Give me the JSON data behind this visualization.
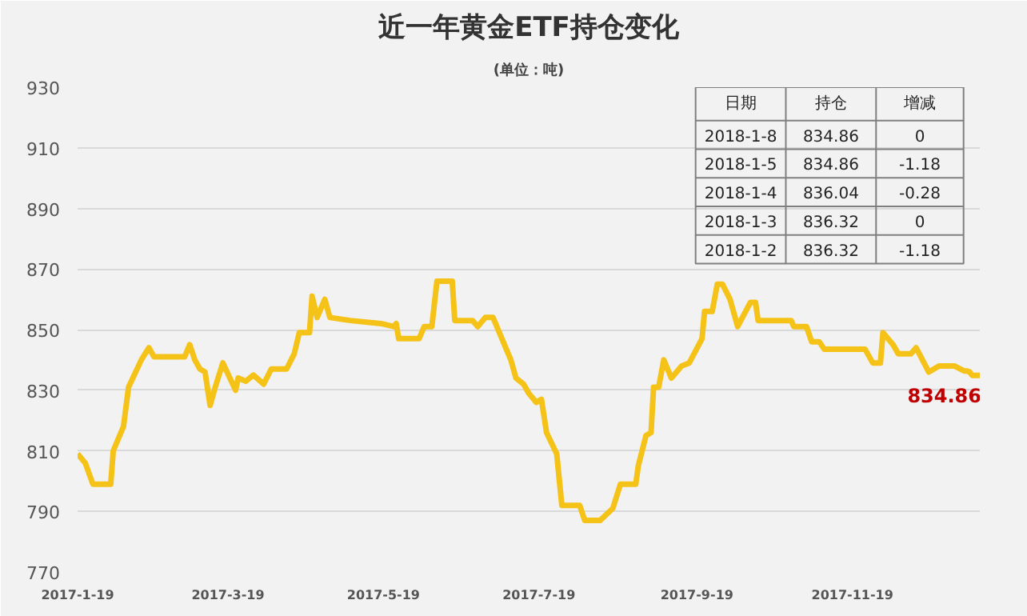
{
  "chart_data": {
    "type": "line",
    "title": "近一年黄金ETF持仓变化",
    "subtitle": "(单位：吨)",
    "x": [
      "2017-01-19",
      "2017-01-22",
      "2017-01-25",
      "2017-02-01",
      "2017-02-02",
      "2017-02-06",
      "2017-02-08",
      "2017-02-13",
      "2017-02-16",
      "2017-02-18",
      "2017-03-02",
      "2017-03-04",
      "2017-03-06",
      "2017-03-08",
      "2017-03-10",
      "2017-03-12",
      "2017-03-14",
      "2017-03-17",
      "2017-03-22",
      "2017-03-23",
      "2017-03-26",
      "2017-03-29",
      "2017-04-02",
      "2017-04-05",
      "2017-04-11",
      "2017-04-14",
      "2017-04-16",
      "2017-04-20",
      "2017-04-21",
      "2017-04-23",
      "2017-04-26",
      "2017-04-28",
      "2017-05-06",
      "2017-05-18",
      "2017-05-23",
      "2017-05-24",
      "2017-05-25",
      "2017-06-02",
      "2017-06-04",
      "2017-06-07",
      "2017-06-09",
      "2017-06-15",
      "2017-06-16",
      "2017-06-23",
      "2017-06-25",
      "2017-06-28",
      "2017-07-01",
      "2017-07-08",
      "2017-07-10",
      "2017-07-13",
      "2017-07-15",
      "2017-07-18",
      "2017-07-20",
      "2017-07-22",
      "2017-07-26",
      "2017-07-28",
      "2017-08-04",
      "2017-08-06",
      "2017-08-12",
      "2017-08-17",
      "2017-08-20",
      "2017-08-26",
      "2017-08-27",
      "2017-08-30",
      "2017-09-01",
      "2017-09-02",
      "2017-09-04",
      "2017-09-06",
      "2017-09-09",
      "2017-09-13",
      "2017-09-16",
      "2017-09-21",
      "2017-09-22",
      "2017-09-25",
      "2017-09-27",
      "2017-09-29",
      "2017-10-02",
      "2017-10-05",
      "2017-10-10",
      "2017-10-12",
      "2017-10-13",
      "2017-10-26",
      "2017-10-27",
      "2017-11-01",
      "2017-11-03",
      "2017-11-06",
      "2017-11-08",
      "2017-11-24",
      "2017-11-27",
      "2017-11-30",
      "2017-12-01",
      "2017-12-05",
      "2017-12-07",
      "2017-12-12",
      "2017-12-14",
      "2017-12-19",
      "2017-12-23",
      "2017-12-29",
      "2018-01-02",
      "2018-01-03",
      "2018-01-04",
      "2018-01-05",
      "2018-01-08"
    ],
    "series": [
      {
        "color": "#f5c218",
        "values": [
          809,
          806,
          799,
          799,
          810,
          818,
          831,
          840,
          844,
          841,
          841,
          845,
          840,
          837,
          836,
          825,
          831,
          839,
          830,
          834,
          833,
          835,
          832,
          837,
          837,
          842,
          849,
          849,
          861,
          854,
          860,
          854,
          853,
          852,
          851,
          852,
          847,
          847,
          851,
          851,
          866,
          866,
          853,
          853,
          851,
          854,
          854,
          840,
          834,
          832,
          829,
          826,
          827,
          816,
          809,
          792,
          792,
          787,
          787,
          791,
          799,
          799,
          805,
          815,
          816,
          831,
          831,
          840,
          834,
          838,
          839,
          847,
          856,
          856,
          865,
          865,
          860,
          851,
          859,
          859,
          853,
          853,
          851,
          851,
          846,
          846,
          843.5,
          843.5,
          839,
          839,
          849,
          845,
          842,
          842,
          844,
          836,
          838,
          838,
          836.32,
          836.32,
          836.04,
          834.86,
          834.86
        ],
        "value_labels": [
          null,
          null,
          null,
          null,
          null,
          null,
          null,
          null,
          null,
          null,
          null,
          null,
          null,
          null,
          null,
          null,
          null,
          null,
          null,
          null,
          null,
          null,
          null,
          null,
          null,
          null,
          null,
          null,
          null,
          null,
          null,
          null,
          null,
          null,
          null,
          null,
          null,
          null,
          null,
          null,
          null,
          null,
          null,
          null,
          null,
          null,
          null,
          null,
          null,
          null,
          null,
          null,
          null,
          null,
          null,
          null,
          null,
          null,
          null,
          null,
          null,
          null,
          null,
          null,
          null,
          null,
          null,
          null,
          null,
          null,
          null,
          null,
          null,
          null,
          null,
          null,
          null,
          null,
          null,
          null,
          null,
          null,
          null,
          null,
          null,
          null,
          null,
          null,
          null,
          null,
          null,
          null,
          null,
          null,
          null,
          null,
          null,
          null,
          null,
          null,
          null,
          null,
          "834.86"
        ]
      }
    ],
    "xlim": [
      "2017-01-19",
      "2018-01-08"
    ],
    "xticks": [
      {
        "value": "2017-01-19",
        "label": "2017-1-19"
      },
      {
        "value": "2017-03-19",
        "label": "2017-3-19"
      },
      {
        "value": "2017-05-19",
        "label": "2017-5-19"
      },
      {
        "value": "2017-07-19",
        "label": "2017-7-19"
      },
      {
        "value": "2017-09-19",
        "label": "2017-9-19"
      },
      {
        "value": "2017-11-19",
        "label": "2017-11-19"
      }
    ],
    "ylim": [
      770,
      930
    ],
    "yticks": [
      770,
      790,
      810,
      830,
      850,
      870,
      890,
      910,
      930
    ],
    "grid": "y",
    "marker": "none",
    "line_style": "solid",
    "annotations": [
      "日期",
      "持仓",
      "增减",
      "2018-1-8",
      "834.86",
      "0",
      "2018-1-5",
      "834.86",
      "-1.18",
      "2018-1-4",
      "836.04",
      "-0.28",
      "2018-1-3",
      "836.32",
      "0",
      "2018-1-2",
      "836.32",
      "-1.18"
    ]
  }
}
